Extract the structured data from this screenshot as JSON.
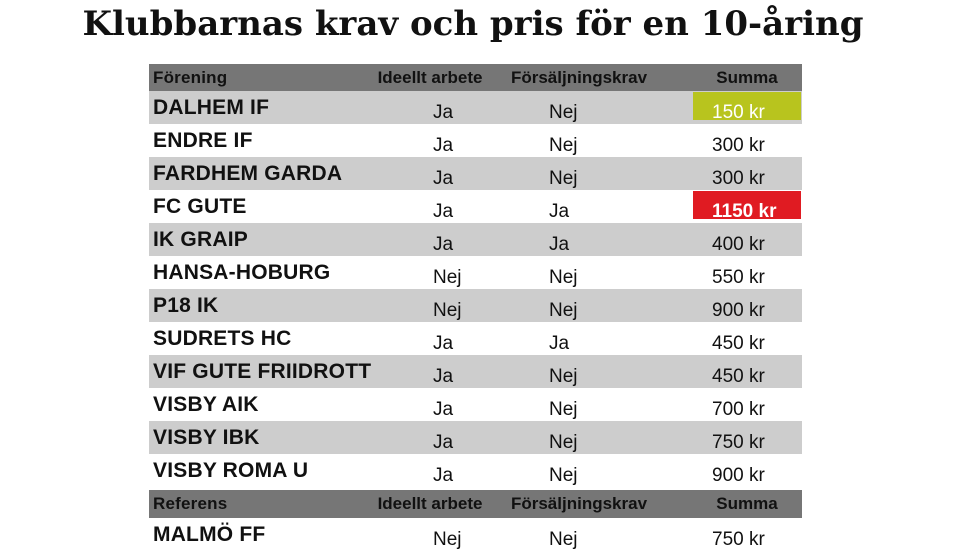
{
  "title": "Klubbarnas krav och pris för en 10-åring",
  "header": {
    "col1": "Förening",
    "col2": "Ideellt arbete",
    "col3": "Försäljningskrav",
    "col4": "Summa"
  },
  "rows": [
    {
      "name": "DALHEM IF",
      "ideellt": "Ja",
      "fors": "Nej",
      "summa": "150 kr",
      "highlight": "green"
    },
    {
      "name": "ENDRE IF",
      "ideellt": "Ja",
      "fors": "Nej",
      "summa": "300 kr"
    },
    {
      "name": "FARDHEM GARDA",
      "ideellt": "Ja",
      "fors": "Nej",
      "summa": "300 kr"
    },
    {
      "name": "FC GUTE",
      "ideellt": "Ja",
      "fors": "Ja",
      "summa": "1150 kr",
      "highlight": "red"
    },
    {
      "name": "IK GRAIP",
      "ideellt": "Ja",
      "fors": "Ja",
      "summa": "400 kr"
    },
    {
      "name": "HANSA-HOBURG",
      "ideellt": "Nej",
      "fors": "Nej",
      "summa": "550 kr"
    },
    {
      "name": "P18 IK",
      "ideellt": "Nej",
      "fors": "Nej",
      "summa": "900 kr"
    },
    {
      "name": "SUDRETS HC",
      "ideellt": "Ja",
      "fors": "Ja",
      "summa": "450 kr"
    },
    {
      "name": "VIF GUTE FRIIDROTT",
      "ideellt": "Ja",
      "fors": "Nej",
      "summa": "450 kr"
    },
    {
      "name": "VISBY AIK",
      "ideellt": "Ja",
      "fors": "Nej",
      "summa": "700 kr"
    },
    {
      "name": "VISBY IBK",
      "ideellt": "Ja",
      "fors": "Nej",
      "summa": "750 kr"
    },
    {
      "name": "VISBY ROMA U",
      "ideellt": "Ja",
      "fors": "Nej",
      "summa": "900 kr"
    }
  ],
  "ref_header": {
    "col1": "Referens",
    "col2": "Ideellt arbete",
    "col3": "Försäljningskrav",
    "col4": "Summa"
  },
  "ref_rows": [
    {
      "name": "MALMÖ FF",
      "ideellt": "Nej",
      "fors": "Nej",
      "summa": "750 kr"
    }
  ],
  "colors": {
    "header_bg": "#767676",
    "stripe": "#cdcdcd",
    "highlight_low": "#b8c41e",
    "highlight_high": "#e01b22"
  }
}
